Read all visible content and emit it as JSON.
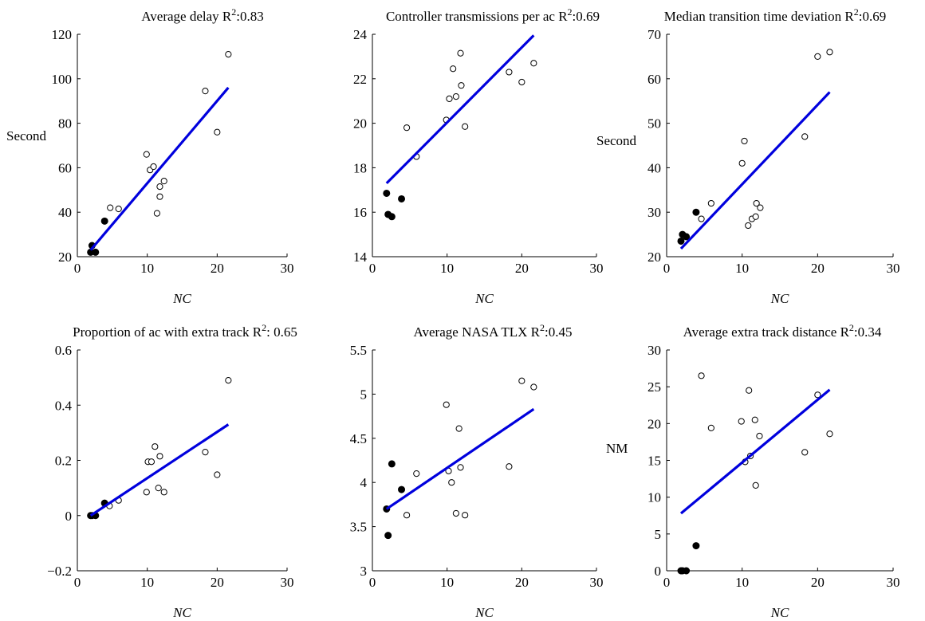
{
  "colors": {
    "fit_line": "#0000dd",
    "axes": "#000000",
    "filled_marker": "#000000",
    "hollow_marker_fill": "#ffffff"
  },
  "chart_data": [
    {
      "type": "scatter",
      "title": "Average delay",
      "r2_label": "R",
      "r2_sup": "2",
      "r2_value": ":0.83",
      "xlabel": "NC",
      "ylabel": "Second",
      "xlim": [
        0,
        30
      ],
      "ylim": [
        20,
        120
      ],
      "xticks": [
        0,
        10,
        20,
        30
      ],
      "yticks": [
        20,
        40,
        60,
        80,
        100,
        120
      ],
      "filled": {
        "x": [
          1.9,
          2.1,
          2.6,
          3.9
        ],
        "y": [
          22,
          25,
          22,
          36
        ]
      },
      "hollow": {
        "x": [
          4.7,
          5.9,
          9.9,
          10.4,
          10.9,
          11.4,
          11.8,
          11.8,
          12.4,
          18.3,
          20.0,
          21.6
        ],
        "y": [
          42,
          41.5,
          66,
          59,
          60.5,
          39.5,
          51.5,
          47,
          54,
          94.5,
          76,
          111
        ]
      },
      "fit": {
        "x": [
          1.9,
          21.6
        ],
        "y": [
          23,
          96
        ]
      }
    },
    {
      "type": "scatter",
      "title": "Controller transmissions per ac",
      "r2_label": "R",
      "r2_sup": "2",
      "r2_value": ":0.69",
      "xlabel": "NC",
      "ylabel": "",
      "xlim": [
        0,
        30
      ],
      "ylim": [
        14,
        24
      ],
      "xticks": [
        0,
        10,
        20,
        30
      ],
      "yticks": [
        14,
        16,
        18,
        20,
        22,
        24
      ],
      "filled": {
        "x": [
          1.9,
          2.1,
          2.6,
          3.9
        ],
        "y": [
          16.85,
          15.9,
          15.8,
          16.6
        ]
      },
      "hollow": {
        "x": [
          4.6,
          5.9,
          9.9,
          10.3,
          10.8,
          11.2,
          11.8,
          11.9,
          12.4,
          18.3,
          20.0,
          21.6
        ],
        "y": [
          19.8,
          18.5,
          20.15,
          21.1,
          22.45,
          21.2,
          23.15,
          21.7,
          19.85,
          22.3,
          21.85,
          22.7
        ]
      },
      "fit": {
        "x": [
          1.9,
          21.6
        ],
        "y": [
          17.3,
          23.95
        ]
      }
    },
    {
      "type": "scatter",
      "title": "Median transition time deviation",
      "r2_label": "R",
      "r2_sup": "2",
      "r2_value": ":0.69",
      "xlabel": "NC",
      "ylabel": "Second",
      "xlim": [
        0,
        30
      ],
      "ylim": [
        20,
        70
      ],
      "xticks": [
        0,
        10,
        20,
        30
      ],
      "yticks": [
        20,
        30,
        40,
        50,
        60,
        70
      ],
      "filled": {
        "x": [
          1.9,
          2.1,
          2.6,
          3.9
        ],
        "y": [
          23.5,
          25,
          24.5,
          30
        ]
      },
      "hollow": {
        "x": [
          4.6,
          5.9,
          10.0,
          10.3,
          10.8,
          11.3,
          11.8,
          11.9,
          12.4,
          18.3,
          20.0,
          21.6
        ],
        "y": [
          28.5,
          32,
          41,
          46,
          27,
          28.5,
          29,
          32,
          31,
          47,
          65,
          66
        ]
      },
      "fit": {
        "x": [
          1.9,
          21.6
        ],
        "y": [
          21.8,
          57
        ]
      }
    },
    {
      "type": "scatter",
      "title": "Proportion of ac with extra track",
      "r2_label": "R",
      "r2_sup": "2",
      "r2_value": ": 0.65",
      "xlabel": "NC",
      "ylabel": "",
      "xlim": [
        0,
        30
      ],
      "ylim": [
        -0.2,
        0.6
      ],
      "xticks": [
        0,
        10,
        20,
        30
      ],
      "yticks": [
        -0.2,
        0,
        0.2,
        0.4,
        0.6
      ],
      "ytick_labels": [
        "−0.2",
        "0",
        "0.2",
        "0.4",
        "0.6"
      ],
      "filled": {
        "x": [
          1.9,
          2.1,
          2.6,
          3.9
        ],
        "y": [
          0,
          0,
          0,
          0.045
        ]
      },
      "hollow": {
        "x": [
          4.6,
          5.9,
          9.9,
          10.1,
          10.6,
          11.1,
          11.6,
          11.8,
          12.4,
          18.3,
          20.0,
          21.6
        ],
        "y": [
          0.035,
          0.055,
          0.085,
          0.195,
          0.195,
          0.25,
          0.1,
          0.215,
          0.085,
          0.23,
          0.148,
          0.49
        ]
      },
      "fit": {
        "x": [
          1.9,
          21.6
        ],
        "y": [
          0,
          0.33
        ]
      }
    },
    {
      "type": "scatter",
      "title": "Average NASA TLX",
      "r2_label": "R",
      "r2_sup": "2",
      "r2_value": ":0.45",
      "xlabel": "NC",
      "ylabel": "",
      "xlim": [
        0,
        30
      ],
      "ylim": [
        3,
        5.5
      ],
      "xticks": [
        0,
        10,
        20,
        30
      ],
      "yticks": [
        3,
        3.5,
        4,
        4.5,
        5,
        5.5
      ],
      "filled": {
        "x": [
          1.9,
          2.1,
          2.6,
          3.9
        ],
        "y": [
          3.7,
          3.4,
          4.21,
          3.92
        ]
      },
      "hollow": {
        "x": [
          4.6,
          5.9,
          9.9,
          10.2,
          10.6,
          11.2,
          11.6,
          11.8,
          12.4,
          18.3,
          20.0,
          21.6
        ],
        "y": [
          3.63,
          4.1,
          4.88,
          4.13,
          4.0,
          3.65,
          4.61,
          4.17,
          3.63,
          4.18,
          5.15,
          5.08
        ]
      },
      "fit": {
        "x": [
          1.9,
          21.6
        ],
        "y": [
          3.7,
          4.83
        ]
      }
    },
    {
      "type": "scatter",
      "title": "Average extra track distance",
      "r2_label": "R",
      "r2_sup": "2",
      "r2_value": ":0.34",
      "xlabel": "NC",
      "ylabel": "NM",
      "xlim": [
        0,
        30
      ],
      "ylim": [
        0,
        30
      ],
      "xticks": [
        0,
        10,
        20,
        30
      ],
      "yticks": [
        0,
        5,
        10,
        15,
        20,
        25,
        30
      ],
      "filled": {
        "x": [
          1.9,
          2.1,
          2.6,
          3.9
        ],
        "y": [
          0,
          0,
          0,
          3.4
        ]
      },
      "hollow": {
        "x": [
          4.6,
          5.9,
          9.9,
          10.4,
          10.9,
          11.1,
          11.7,
          11.8,
          12.3,
          18.3,
          20.0,
          21.6
        ],
        "y": [
          26.5,
          19.4,
          20.3,
          14.8,
          24.5,
          15.6,
          20.5,
          11.6,
          18.3,
          16.1,
          23.9,
          18.6
        ]
      },
      "fit": {
        "x": [
          1.9,
          21.6
        ],
        "y": [
          7.8,
          24.6
        ]
      }
    }
  ]
}
